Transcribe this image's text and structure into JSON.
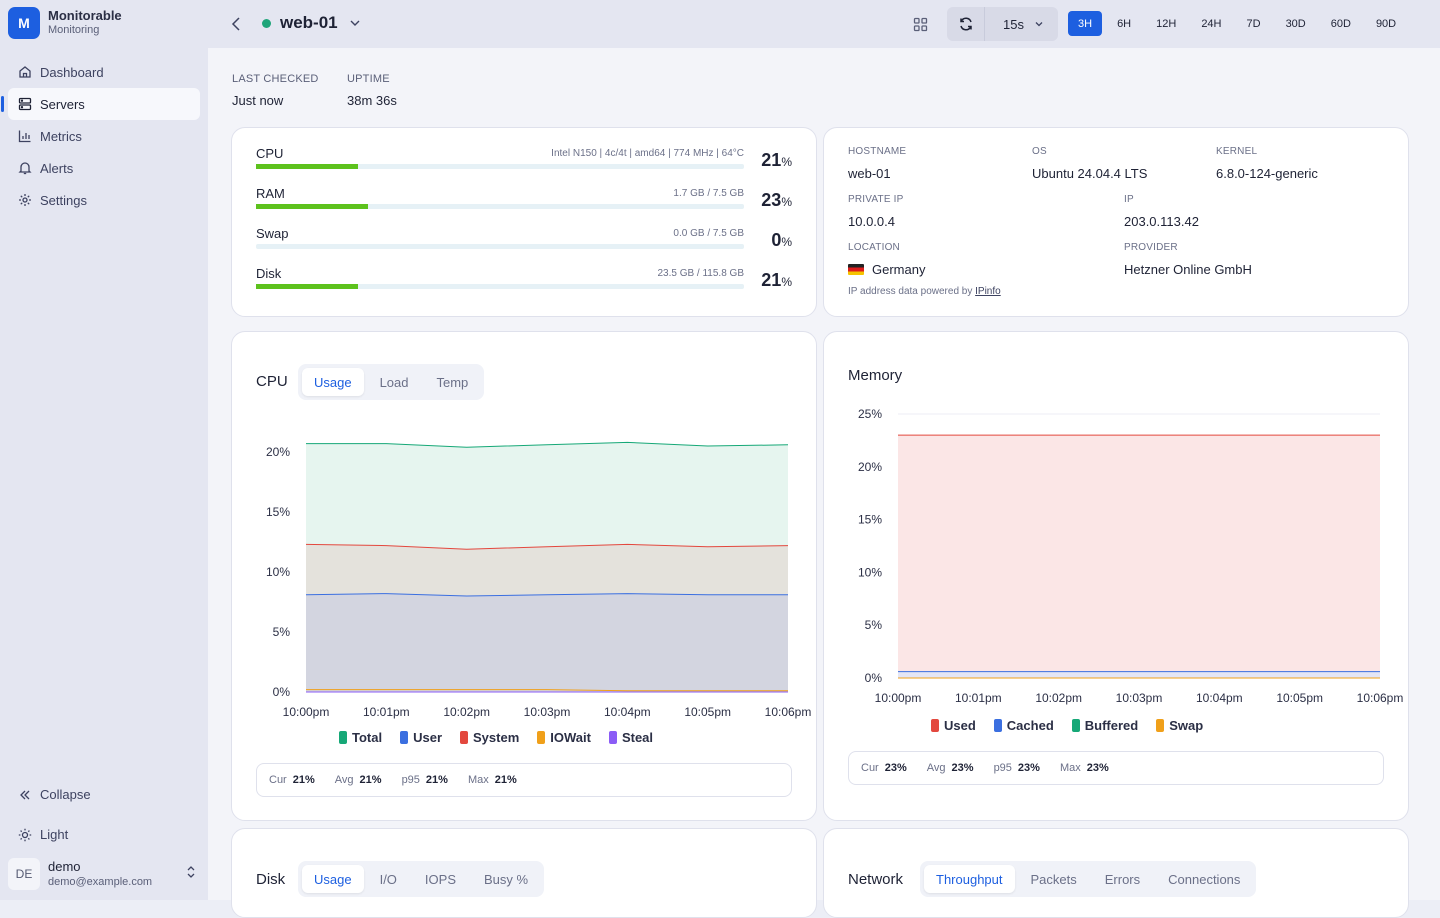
{
  "sidebar": {
    "brand": {
      "logo": "M",
      "name": "Monitorable",
      "subtitle": "Monitoring"
    },
    "nav": [
      {
        "label": "Dashboard",
        "icon": "home-icon",
        "active": false
      },
      {
        "label": "Servers",
        "icon": "server-icon",
        "active": true
      },
      {
        "label": "Metrics",
        "icon": "bar-chart-icon",
        "active": false
      },
      {
        "label": "Alerts",
        "icon": "bell-icon",
        "active": false
      },
      {
        "label": "Settings",
        "icon": "gear-icon",
        "active": false
      }
    ],
    "collapse_label": "Collapse",
    "theme_label": "Light",
    "user": {
      "initials": "DE",
      "name": "demo",
      "email": "demo@example.com"
    }
  },
  "topbar": {
    "server_name": "web-01",
    "status_color": "#1fa57a",
    "refresh_interval": "15s",
    "ranges": [
      "3H",
      "6H",
      "12H",
      "24H",
      "7D",
      "30D",
      "60D",
      "90D"
    ],
    "active_range": "3H"
  },
  "stats": {
    "last_checked_label": "LAST CHECKED",
    "last_checked": "Just now",
    "uptime_label": "UPTIME",
    "uptime": "38m 36s"
  },
  "resources": [
    {
      "name": "CPU",
      "info": "Intel N150 | 4c/4t | amd64 | 774 MHz | 64°C",
      "percent": 21
    },
    {
      "name": "RAM",
      "info": "1.7 GB / 7.5 GB",
      "percent": 23
    },
    {
      "name": "Swap",
      "info": "0.0 GB / 7.5 GB",
      "percent": 0
    },
    {
      "name": "Disk",
      "info": "23.5 GB / 115.8 GB",
      "percent": 21
    }
  ],
  "percent_sign": "%",
  "info": {
    "hostname_label": "HOSTNAME",
    "hostname": "web-01",
    "os_label": "OS",
    "os": "Ubuntu 24.04.4 LTS",
    "kernel_label": "KERNEL",
    "kernel": "6.8.0-124-generic",
    "private_ip_label": "PRIVATE IP",
    "private_ip": "10.0.0.4",
    "ip_label": "IP",
    "ip": "203.0.113.42",
    "location_label": "LOCATION",
    "location": "Germany",
    "provider_label": "PROVIDER",
    "provider": "Hetzner Online GmbH",
    "powered_prefix": "IP address data powered by ",
    "powered_link": "IPinfo"
  },
  "cpu_card": {
    "title": "CPU",
    "tabs": [
      "Usage",
      "Load",
      "Temp"
    ],
    "active_tab": "Usage",
    "summary": {
      "cur_label": "Cur",
      "cur": "21%",
      "avg_label": "Avg",
      "avg": "21%",
      "p95_label": "p95",
      "p95": "21%",
      "max_label": "Max",
      "max": "21%"
    }
  },
  "memory_card": {
    "title": "Memory",
    "summary": {
      "cur_label": "Cur",
      "cur": "23%",
      "avg_label": "Avg",
      "avg": "23%",
      "p95_label": "p95",
      "p95": "23%",
      "max_label": "Max",
      "max": "23%"
    }
  },
  "disk_card": {
    "title": "Disk",
    "tabs": [
      "Usage",
      "I/O",
      "IOPS",
      "Busy %"
    ],
    "active_tab": "Usage"
  },
  "network_card": {
    "title": "Network",
    "tabs": [
      "Throughput",
      "Packets",
      "Errors",
      "Connections"
    ],
    "active_tab": "Throughput"
  },
  "chart_data": [
    {
      "type": "area",
      "title": "CPU",
      "x": [
        "10:00pm",
        "10:01pm",
        "10:02pm",
        "10:03pm",
        "10:04pm",
        "10:05pm",
        "10:06pm"
      ],
      "ylim": [
        0,
        20
      ],
      "yticks": [
        "0%",
        "5%",
        "10%",
        "15%",
        "20%"
      ],
      "series": [
        {
          "name": "Total",
          "color": "#16a877",
          "values": [
            20.7,
            20.7,
            20.4,
            20.6,
            20.8,
            20.5,
            20.6
          ]
        },
        {
          "name": "System",
          "color": "#e3483e",
          "values": [
            12.3,
            12.2,
            11.9,
            12.1,
            12.3,
            12.1,
            12.2
          ]
        },
        {
          "name": "User",
          "color": "#3b6fe0",
          "values": [
            8.1,
            8.2,
            8.0,
            8.1,
            8.2,
            8.1,
            8.1
          ]
        },
        {
          "name": "IOWait",
          "color": "#f0a01a",
          "values": [
            0.2,
            0.2,
            0.2,
            0.2,
            0.1,
            0.1,
            0.1
          ]
        },
        {
          "name": "Steal",
          "color": "#8b5cf6",
          "values": [
            0,
            0,
            0,
            0,
            0,
            0,
            0
          ]
        }
      ],
      "legend": [
        "Total",
        "User",
        "System",
        "IOWait",
        "Steal"
      ]
    },
    {
      "type": "area",
      "title": "Memory",
      "x": [
        "10:00pm",
        "10:01pm",
        "10:02pm",
        "10:03pm",
        "10:04pm",
        "10:05pm",
        "10:06pm"
      ],
      "ylim": [
        0,
        25
      ],
      "yticks": [
        "0%",
        "5%",
        "10%",
        "15%",
        "20%",
        "25%"
      ],
      "series": [
        {
          "name": "Used",
          "color": "#e3483e",
          "values": [
            23,
            23,
            23,
            23,
            23,
            23,
            23
          ]
        },
        {
          "name": "Cached",
          "color": "#3b6fe0",
          "values": [
            0.6,
            0.6,
            0.6,
            0.6,
            0.6,
            0.6,
            0.6
          ]
        },
        {
          "name": "Buffered",
          "color": "#16a877",
          "values": [
            0,
            0,
            0,
            0,
            0,
            0,
            0
          ]
        },
        {
          "name": "Swap",
          "color": "#f0a01a",
          "values": [
            0,
            0,
            0,
            0,
            0,
            0,
            0
          ]
        }
      ],
      "legend": [
        "Used",
        "Cached",
        "Buffered",
        "Swap"
      ]
    }
  ]
}
